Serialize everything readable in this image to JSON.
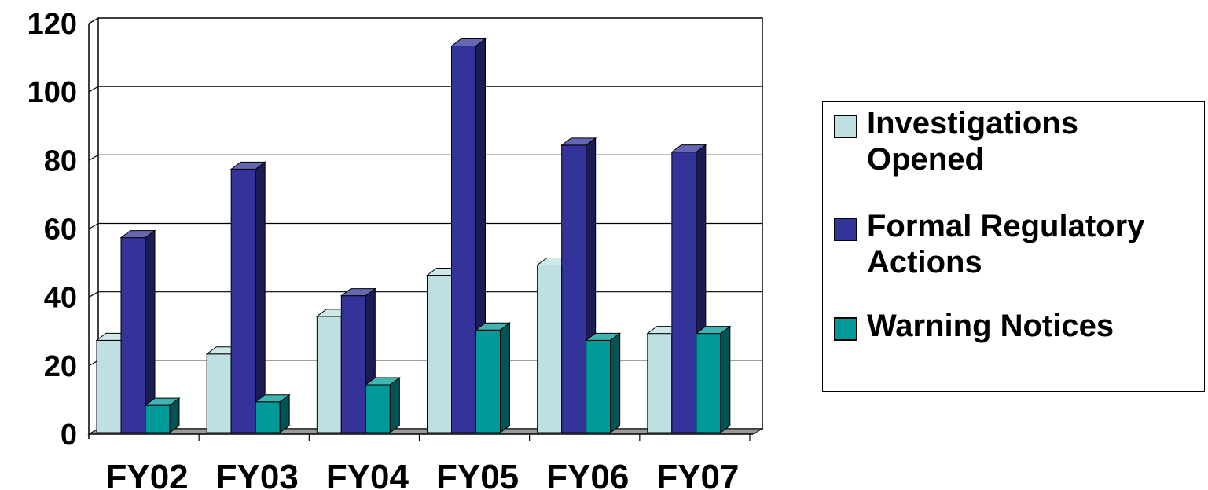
{
  "chart_data": {
    "type": "bar",
    "categories": [
      "FY02",
      "FY03",
      "FY04",
      "FY05",
      "FY06",
      "FY07"
    ],
    "series": [
      {
        "name": "Investigations Opened",
        "values": [
          27,
          23,
          34,
          46,
          49,
          29
        ],
        "color": "#bfe0e2"
      },
      {
        "name": "Formal Regulatory Actions",
        "values": [
          57,
          77,
          40,
          113,
          84,
          82
        ],
        "color": "#333399"
      },
      {
        "name": "Warning Notices",
        "values": [
          8,
          9,
          14,
          30,
          27,
          29
        ],
        "color": "#009999"
      }
    ],
    "yticks": [
      "0",
      "20",
      "40",
      "60",
      "80",
      "100",
      "120"
    ],
    "ylim": [
      0,
      120
    ],
    "grid": true,
    "legend_position": "right",
    "style": "3d-clustered-column"
  }
}
